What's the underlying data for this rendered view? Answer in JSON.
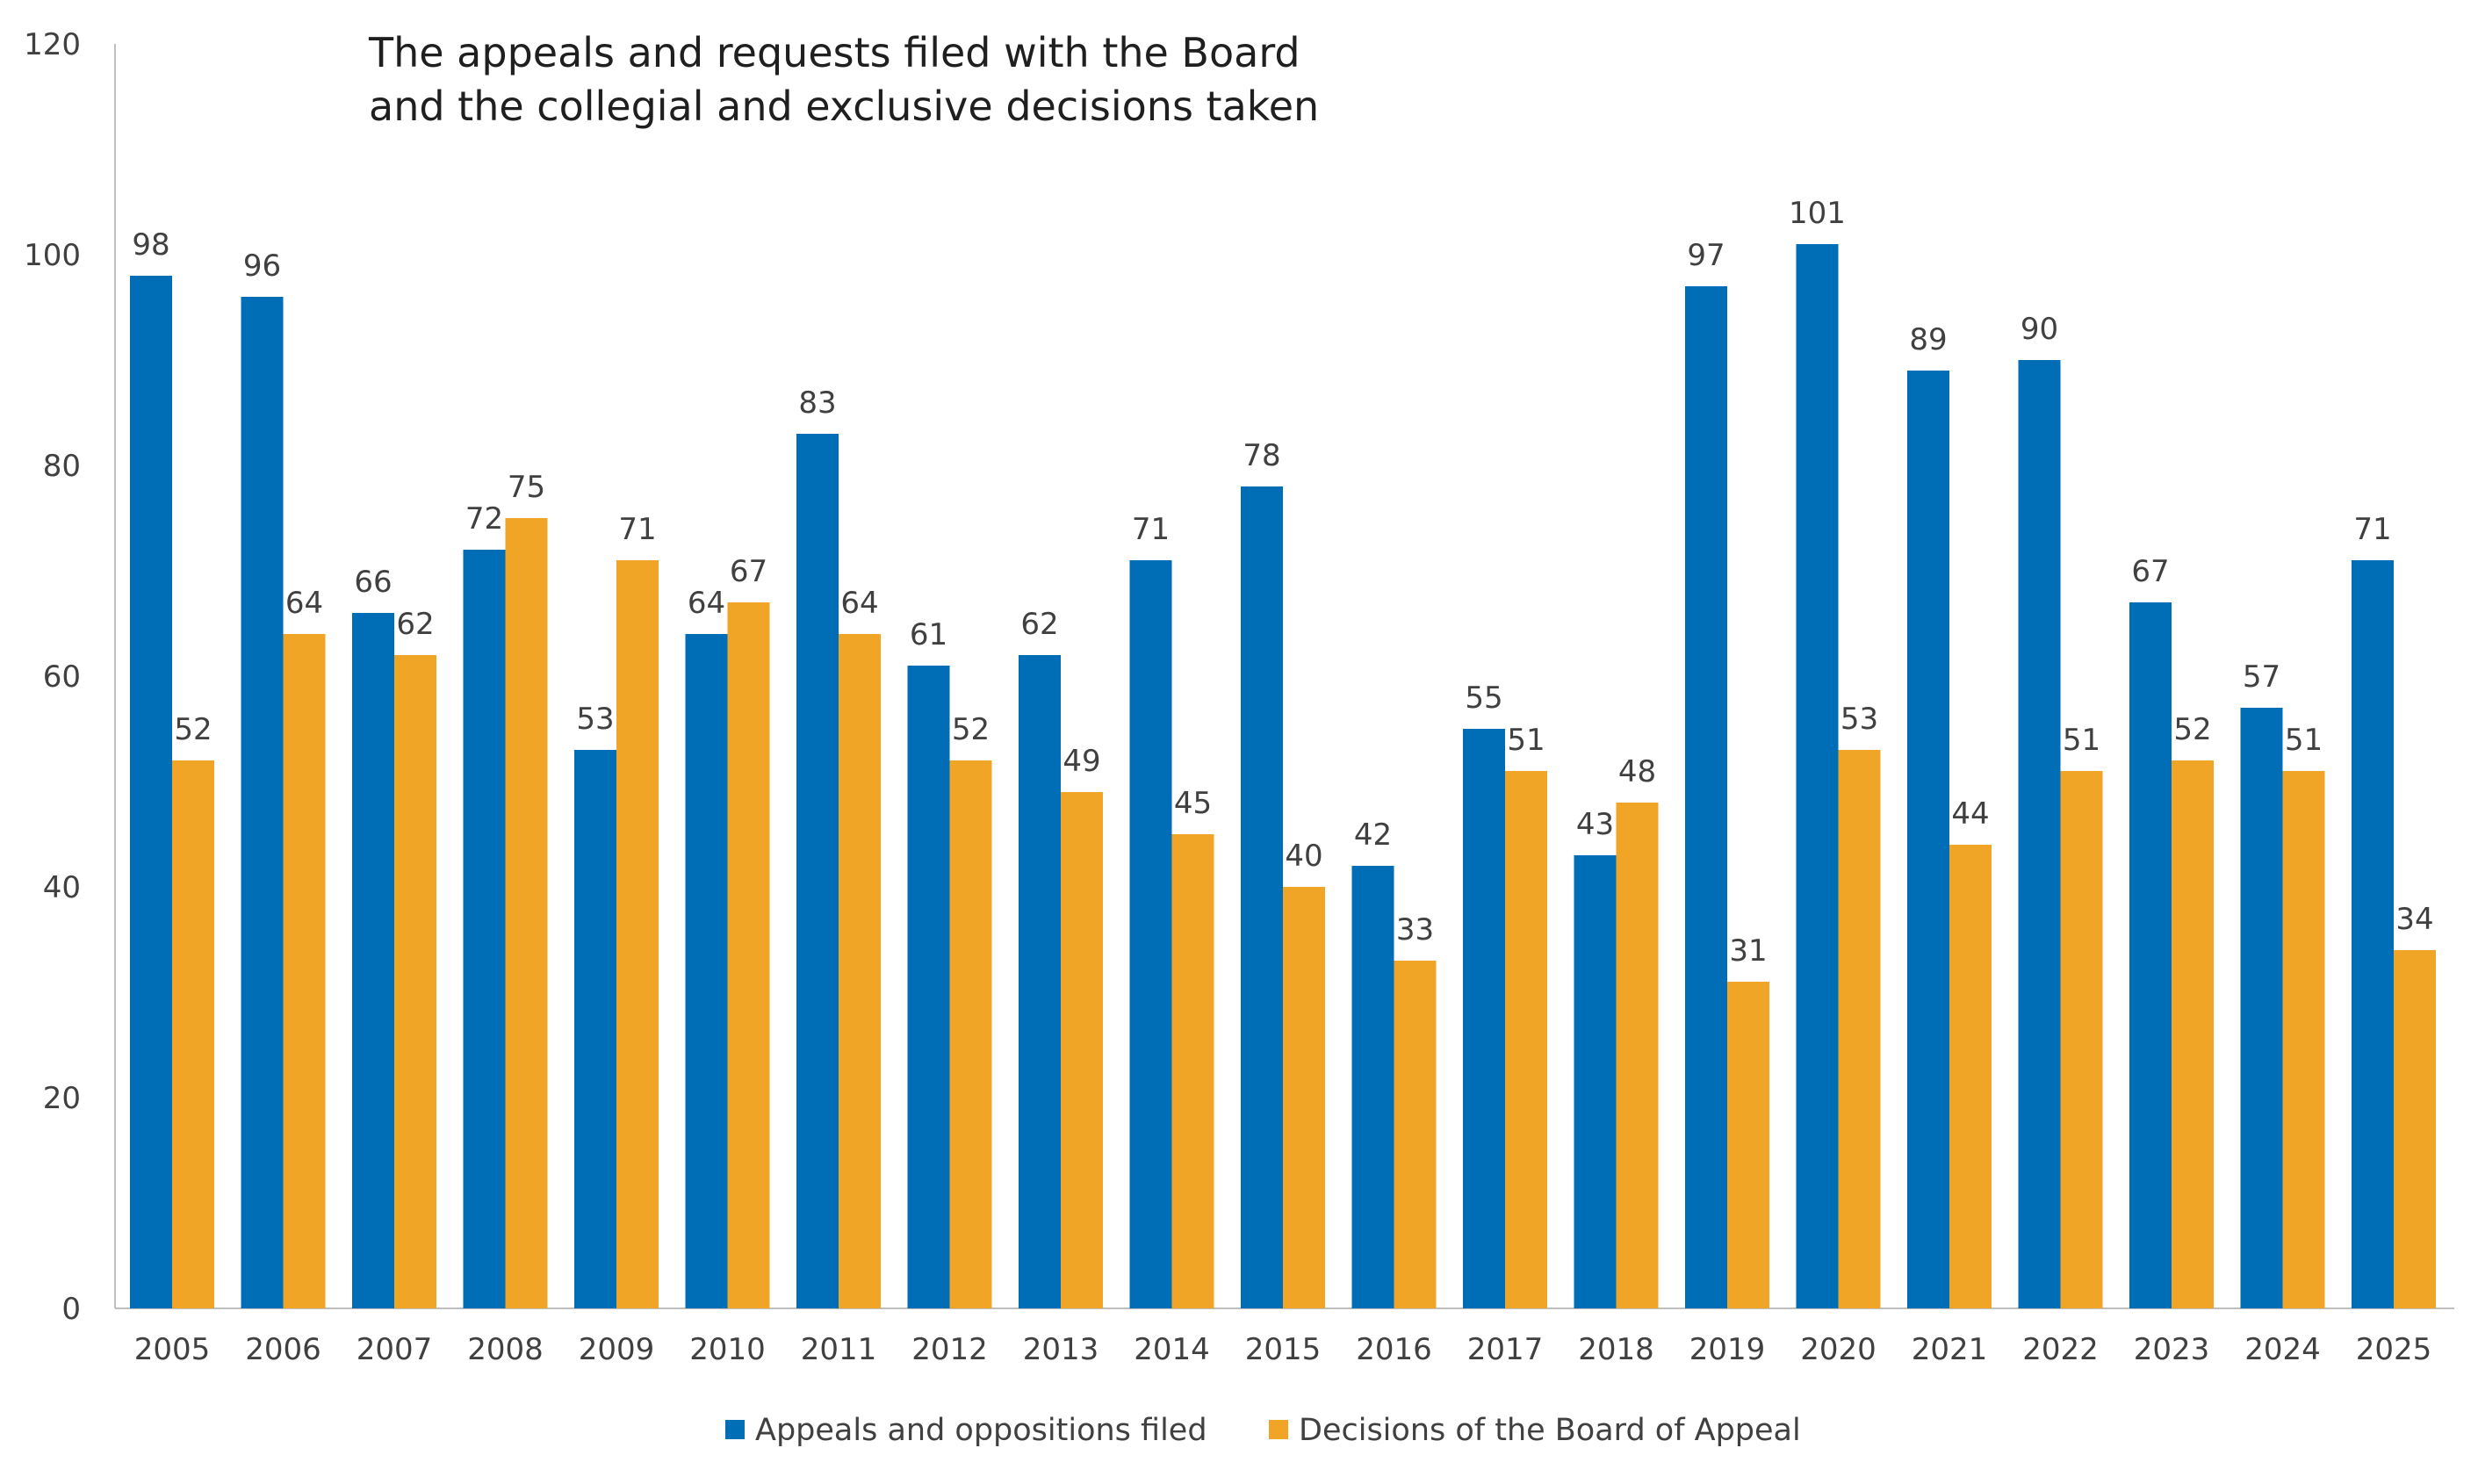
{
  "chart_data": {
    "type": "bar",
    "title": "The appeals and requests filed with the Board",
    "subtitle": "and the collegial and exclusive decisions taken",
    "xlabel": "",
    "ylabel": "",
    "ylim": [
      0,
      120
    ],
    "yticks": [
      0,
      20,
      40,
      60,
      80,
      100,
      120
    ],
    "grid": false,
    "legend": "bottom-center",
    "categories": [
      "2005",
      "2006",
      "2007",
      "2008",
      "2009",
      "2010",
      "2011",
      "2012",
      "2013",
      "2014",
      "2015",
      "2016",
      "2017",
      "2018",
      "2019",
      "2020",
      "2021",
      "2022",
      "2023",
      "2024",
      "2025"
    ],
    "series": [
      {
        "name": "Appeals and oppositions filed",
        "color": "#006eb7",
        "values": [
          98,
          96,
          66,
          72,
          53,
          64,
          83,
          61,
          62,
          71,
          78,
          42,
          55,
          43,
          97,
          101,
          89,
          90,
          67,
          57,
          71
        ]
      },
      {
        "name": "Decisions of the Board of Appeal",
        "color": "#f0a526",
        "values": [
          52,
          64,
          62,
          75,
          71,
          67,
          64,
          52,
          49,
          45,
          40,
          33,
          51,
          48,
          31,
          53,
          44,
          51,
          52,
          51,
          34
        ]
      }
    ]
  }
}
